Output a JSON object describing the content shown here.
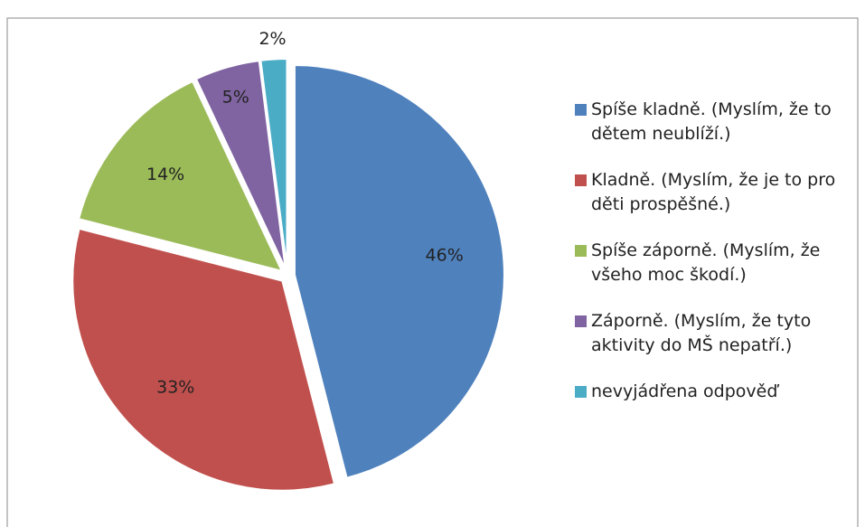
{
  "chart_data": {
    "type": "pie",
    "categories": [
      "Spíše kladně. (Myslím, že to dětem neublíží.)",
      "Kladně. (Myslím, že je to pro děti prospěšné.)",
      "Spíše záporně. (Myslím, že všeho moc škodí.)",
      "Záporně. (Myslím, že tyto aktivity do MŠ nepatří.)",
      "nevyjádřena odpověď"
    ],
    "values": [
      46,
      33,
      14,
      5,
      2
    ],
    "value_labels": [
      "46%",
      "33%",
      "14%",
      "5%",
      "2%"
    ],
    "colors": [
      "#4f81bd",
      "#c0504d",
      "#9bbb59",
      "#8064a2",
      "#4bacc6"
    ],
    "legend": "right"
  }
}
